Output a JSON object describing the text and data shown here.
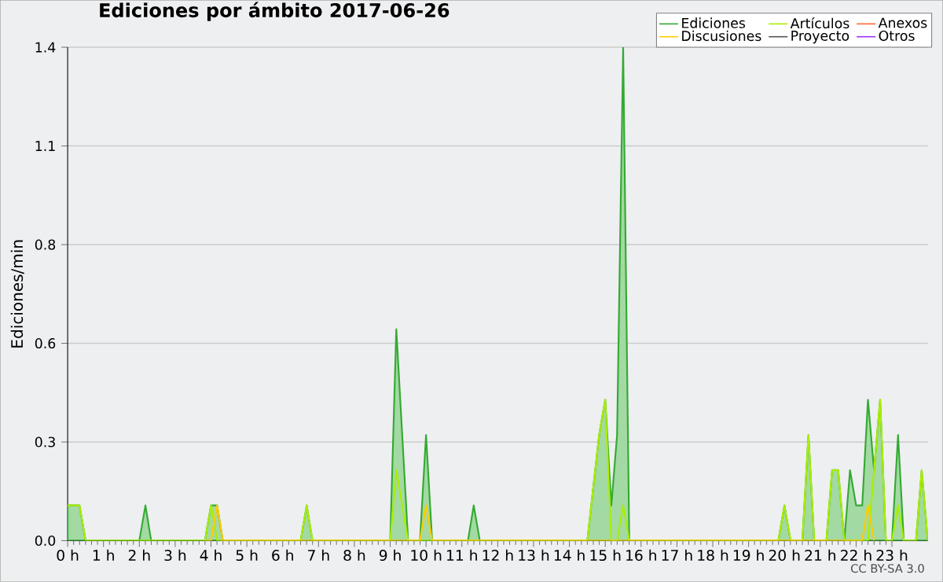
{
  "chart_data": {
    "type": "line",
    "title": "Ediciones por ámbito  2017-06-26",
    "ylabel": "Ediciones/min",
    "annotations": [
      "CC BY-SA 3.0"
    ],
    "xlim": [
      0,
      24
    ],
    "xticks": [
      {
        "value": 0,
        "label": "0 h"
      },
      {
        "value": 1,
        "label": "1 h"
      },
      {
        "value": 2,
        "label": "2 h"
      },
      {
        "value": 3,
        "label": "3 h"
      },
      {
        "value": 4,
        "label": "4 h"
      },
      {
        "value": 5,
        "label": "5 h"
      },
      {
        "value": 6,
        "label": "6 h"
      },
      {
        "value": 7,
        "label": "7 h"
      },
      {
        "value": 8,
        "label": "8 h"
      },
      {
        "value": 9,
        "label": "9 h"
      },
      {
        "value": 10,
        "label": "10 h"
      },
      {
        "value": 11,
        "label": "11 h"
      },
      {
        "value": 12,
        "label": "12 h"
      },
      {
        "value": 13,
        "label": "13 h"
      },
      {
        "value": 14,
        "label": "14 h"
      },
      {
        "value": 15,
        "label": "15 h"
      },
      {
        "value": 16,
        "label": "16 h"
      },
      {
        "value": 17,
        "label": "17 h"
      },
      {
        "value": 18,
        "label": "18 h"
      },
      {
        "value": 19,
        "label": "19 h"
      },
      {
        "value": 20,
        "label": "20 h"
      },
      {
        "value": 21,
        "label": "21 h"
      },
      {
        "value": 22,
        "label": "22 h"
      },
      {
        "value": 23,
        "label": "23 h"
      }
    ],
    "ylim": [
      0,
      1.4
    ],
    "yticks": [
      {
        "value": 0,
        "label": "0.0"
      },
      {
        "value": 0.28,
        "label": "0.3"
      },
      {
        "value": 0.56,
        "label": "0.6"
      },
      {
        "value": 0.84,
        "label": "0.8"
      },
      {
        "value": 1.12,
        "label": "1.1"
      },
      {
        "value": 1.4,
        "label": "1.4"
      }
    ],
    "grid": "y",
    "legend": "top right",
    "series": [
      {
        "name": "Ediciones",
        "type": "area",
        "color": "#33aa33",
        "x": [
          0,
          0.33,
          0.5,
          2.0,
          2.17,
          2.33,
          3.83,
          4.0,
          4.17,
          4.33,
          6.5,
          6.67,
          6.83,
          9.0,
          9.17,
          9.5,
          9.83,
          10.0,
          10.17,
          11.17,
          11.33,
          11.5,
          14.5,
          14.83,
          15.0,
          15.17,
          15.33,
          15.5,
          15.67,
          19.83,
          20.0,
          20.17,
          20.5,
          20.67,
          20.83,
          21.17,
          21.33,
          21.5,
          21.67,
          21.83,
          22.0,
          22.17,
          22.33,
          22.5,
          22.67,
          22.83,
          23.0,
          23.17,
          23.33,
          23.67,
          23.83,
          24.0
        ],
        "values": [
          0.1,
          0.1,
          0,
          0,
          0.1,
          0,
          0,
          0.1,
          0.1,
          0,
          0,
          0.1,
          0,
          0,
          0.6,
          0,
          0,
          0.3,
          0,
          0,
          0.1,
          0,
          0,
          0.3,
          0.4,
          0.1,
          0.3,
          1.4,
          0,
          0,
          0.1,
          0,
          0,
          0.3,
          0,
          0,
          0.2,
          0.2,
          0,
          0.2,
          0.1,
          0.1,
          0.4,
          0.2,
          0.4,
          0,
          0,
          0.3,
          0,
          0,
          0.2,
          0
        ]
      },
      {
        "name": "Artículos",
        "color": "#aaee00",
        "x": [
          0,
          0.33,
          0.5,
          3.83,
          4.0,
          4.17,
          6.5,
          6.67,
          6.83,
          9.0,
          9.17,
          9.5,
          14.5,
          14.83,
          15.0,
          15.17,
          15.33,
          15.5,
          15.67,
          19.83,
          20.0,
          20.17,
          20.5,
          20.67,
          20.83,
          21.17,
          21.33,
          21.5,
          21.67,
          22.17,
          22.33,
          22.5,
          22.67,
          22.83,
          23.0,
          23.17,
          23.33,
          23.67,
          23.83,
          24.0
        ],
        "values": [
          0.1,
          0.1,
          0,
          0,
          0.1,
          0,
          0,
          0.1,
          0,
          0,
          0.2,
          0,
          0,
          0.3,
          0.4,
          0,
          0,
          0.1,
          0,
          0,
          0.1,
          0,
          0,
          0.3,
          0,
          0,
          0.2,
          0.2,
          0,
          0,
          0,
          0.2,
          0.4,
          0,
          0,
          0.1,
          0,
          0,
          0.2,
          0
        ]
      },
      {
        "name": "Anexos",
        "color": "#ff6633",
        "values": [
          null
        ]
      },
      {
        "name": "Discusiones",
        "color": "#ffcc00",
        "x": [
          3.83,
          4.0,
          4.17,
          4.33,
          9.83,
          10.0,
          10.17,
          22.17,
          22.33,
          22.5
        ],
        "values": [
          0,
          0,
          0.1,
          0,
          0,
          0.1,
          0,
          0,
          0.1,
          0
        ]
      },
      {
        "name": "Proyecto",
        "color": "#555555",
        "values": [
          null
        ]
      },
      {
        "name": "Otros",
        "color": "#9933ff",
        "values": [
          null
        ]
      }
    ]
  }
}
